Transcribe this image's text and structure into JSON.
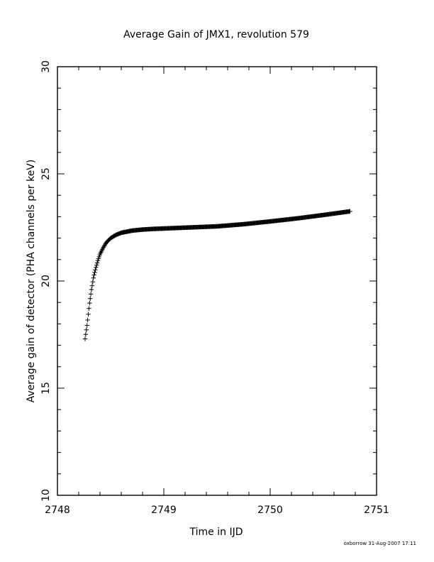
{
  "chart_data": {
    "type": "scatter",
    "title": "Average Gain of JMX1, revolution 579",
    "xlabel": "Time in IJD",
    "ylabel": "Average gain of detector (PHA channels per keV)",
    "xlim": [
      2748,
      2751
    ],
    "ylim": [
      10,
      30
    ],
    "xticks": [
      "2748",
      "2749",
      "2750",
      "2751"
    ],
    "yticks": [
      "10",
      "15",
      "20",
      "25",
      "30"
    ],
    "marker": "plus",
    "color": "#000000",
    "grid": false,
    "series": [
      {
        "x": [
          2748.26,
          2748.28,
          2748.3,
          2748.32,
          2748.34,
          2748.36,
          2748.38,
          2748.4,
          2748.43,
          2748.46,
          2748.5,
          2748.55,
          2748.6,
          2748.7,
          2748.8,
          2748.9,
          2749.0,
          2749.25,
          2749.5,
          2749.75,
          2750.0,
          2750.25,
          2750.5,
          2750.75
        ],
        "y": [
          17.3,
          18.0,
          18.9,
          19.6,
          20.2,
          20.6,
          20.95,
          21.25,
          21.55,
          21.8,
          22.0,
          22.15,
          22.25,
          22.35,
          22.4,
          22.43,
          22.45,
          22.5,
          22.55,
          22.65,
          22.78,
          22.92,
          23.08,
          23.25
        ]
      }
    ]
  },
  "footer": {
    "stamp": "oxborrow 31-Aug-2007 17:11"
  }
}
